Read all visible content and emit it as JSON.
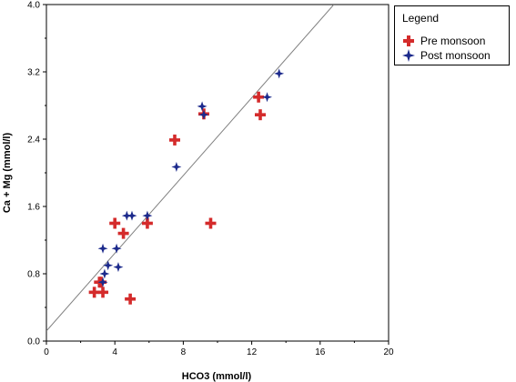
{
  "chart_data": {
    "type": "scatter",
    "xlabel": "HCO3 (mmol/l)",
    "ylabel": "Ca + Mg (mmol/l)",
    "xlim": [
      0,
      20
    ],
    "ylim": [
      0,
      4.0
    ],
    "x_ticks": [
      "0",
      "4",
      "8",
      "12",
      "16",
      "20"
    ],
    "y_ticks": [
      "0.0",
      "0.8",
      "1.6",
      "2.4",
      "3.2",
      "4.0"
    ],
    "legend": {
      "title": "Legend",
      "position": "top-right"
    },
    "series": [
      {
        "name": "Pre monsoon",
        "marker": "plus",
        "color": "#d42b2b",
        "points": [
          [
            2.8,
            0.58
          ],
          [
            3.3,
            0.58
          ],
          [
            3.1,
            0.7
          ],
          [
            3.2,
            0.7
          ],
          [
            4.9,
            0.5
          ],
          [
            4.0,
            1.4
          ],
          [
            4.5,
            1.28
          ],
          [
            5.9,
            1.4
          ],
          [
            7.5,
            2.39
          ],
          [
            9.6,
            1.4
          ],
          [
            9.2,
            2.7
          ],
          [
            12.4,
            2.9
          ],
          [
            12.5,
            2.69
          ]
        ]
      },
      {
        "name": "Post monsoon",
        "marker": "star4",
        "color": "#1c2a8c",
        "points": [
          [
            3.3,
            0.7
          ],
          [
            3.3,
            1.1
          ],
          [
            3.4,
            0.8
          ],
          [
            3.6,
            0.9
          ],
          [
            4.1,
            1.1
          ],
          [
            4.2,
            0.88
          ],
          [
            4.7,
            1.49
          ],
          [
            5.0,
            1.49
          ],
          [
            5.9,
            1.49
          ],
          [
            7.6,
            2.07
          ],
          [
            9.1,
            2.79
          ],
          [
            9.2,
            2.69
          ],
          [
            12.9,
            2.9
          ],
          [
            13.6,
            3.18
          ]
        ]
      }
    ],
    "reference_line": {
      "x": [
        0,
        16.8
      ],
      "y": [
        0.12,
        4.0
      ],
      "color": "#808080"
    }
  }
}
